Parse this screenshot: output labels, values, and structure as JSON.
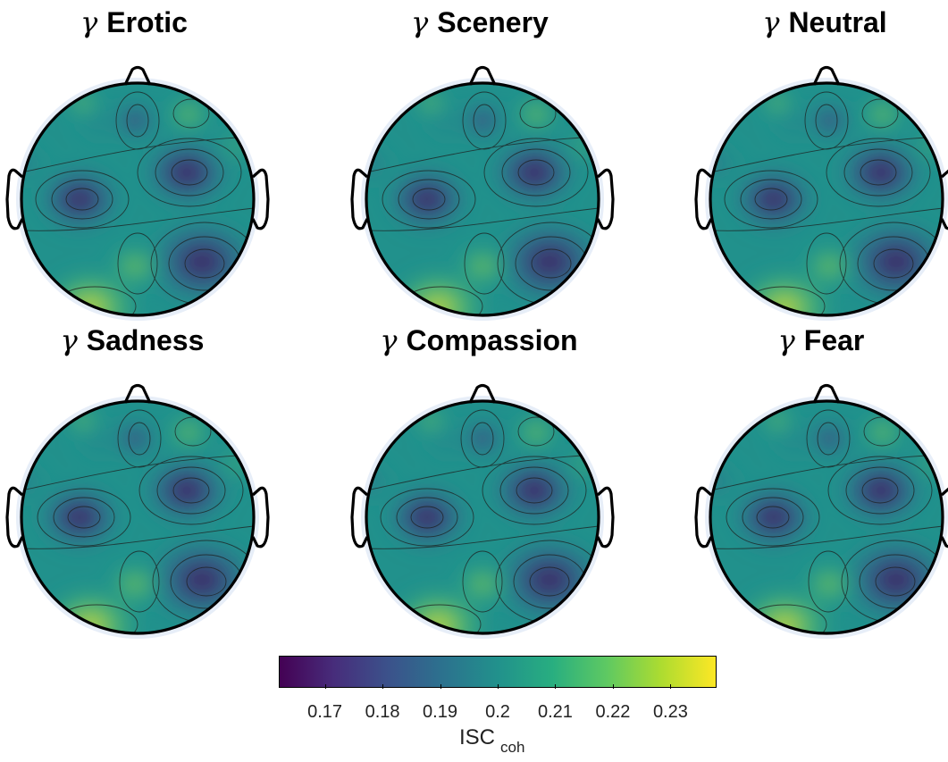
{
  "symbol": "γ",
  "panels": [
    {
      "condition": "Erotic"
    },
    {
      "condition": "Scenery"
    },
    {
      "condition": "Neutral"
    },
    {
      "condition": "Sadness"
    },
    {
      "condition": "Compassion"
    },
    {
      "condition": "Fear"
    }
  ],
  "colorbar": {
    "colormap": "viridis",
    "ticks": [
      "0.17",
      "0.18",
      "0.19",
      "0.2",
      "0.21",
      "0.22",
      "0.23"
    ],
    "label_main": "ISC",
    "label_sub": "coh",
    "range": [
      0.162,
      0.238
    ]
  },
  "colors": {
    "viridis": [
      "#440154",
      "#472d7b",
      "#3b528b",
      "#2c728e",
      "#21918c",
      "#28ae80",
      "#5ec962",
      "#addc30",
      "#fde725"
    ]
  }
}
